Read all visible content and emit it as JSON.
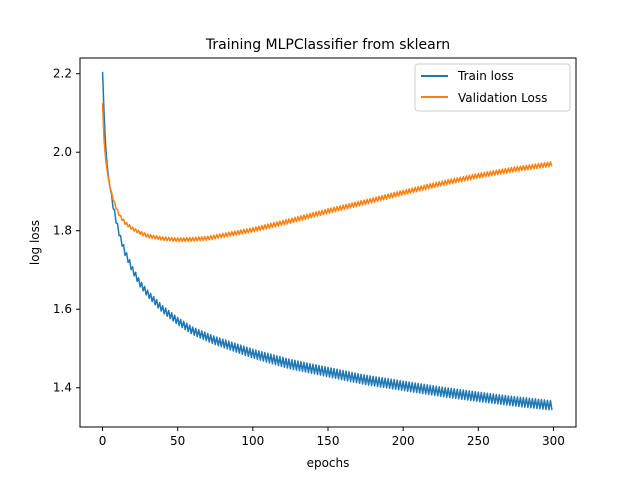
{
  "chart_data": {
    "type": "line",
    "title": "Training MLPClassifier from sklearn",
    "xlabel": "epochs",
    "ylabel": "log loss",
    "xlim": [
      -15,
      315
    ],
    "ylim": [
      1.3,
      2.24
    ],
    "xticks": [
      0,
      50,
      100,
      150,
      200,
      250,
      300
    ],
    "yticks": [
      1.4,
      1.6,
      1.8,
      2.0,
      2.2
    ],
    "xtick_labels": [
      "0",
      "50",
      "100",
      "150",
      "200",
      "250",
      "300"
    ],
    "ytick_labels": [
      "1.4",
      "1.6",
      "1.8",
      "2.0",
      "2.2"
    ],
    "grid": false,
    "legend_position": "upper-right",
    "series": [
      {
        "name": "Train loss",
        "color": "#1f77b4",
        "x": [
          0,
          1,
          2,
          3,
          4,
          5,
          6,
          8,
          10,
          12,
          15,
          20,
          25,
          30,
          40,
          50,
          60,
          75,
          100,
          125,
          150,
          175,
          200,
          225,
          250,
          275,
          299
        ],
        "y": [
          2.205,
          2.1,
          2.02,
          1.97,
          1.935,
          1.91,
          1.885,
          1.845,
          1.81,
          1.78,
          1.745,
          1.7,
          1.665,
          1.64,
          1.6,
          1.57,
          1.545,
          1.52,
          1.487,
          1.46,
          1.44,
          1.42,
          1.405,
          1.39,
          1.377,
          1.365,
          1.355
        ],
        "oscillation_amplitude": 0.012
      },
      {
        "name": "Validation Loss",
        "color": "#ff7f0e",
        "x": [
          0,
          1,
          2,
          3,
          4,
          5,
          6,
          8,
          10,
          12,
          15,
          20,
          25,
          30,
          40,
          50,
          60,
          70,
          80,
          100,
          125,
          150,
          175,
          200,
          225,
          250,
          275,
          299
        ],
        "y": [
          2.125,
          2.03,
          1.985,
          1.955,
          1.93,
          1.91,
          1.895,
          1.87,
          1.85,
          1.835,
          1.82,
          1.805,
          1.795,
          1.787,
          1.78,
          1.777,
          1.778,
          1.781,
          1.788,
          1.802,
          1.825,
          1.85,
          1.873,
          1.897,
          1.92,
          1.94,
          1.957,
          1.97
        ],
        "oscillation_amplitude": 0.006
      }
    ]
  }
}
